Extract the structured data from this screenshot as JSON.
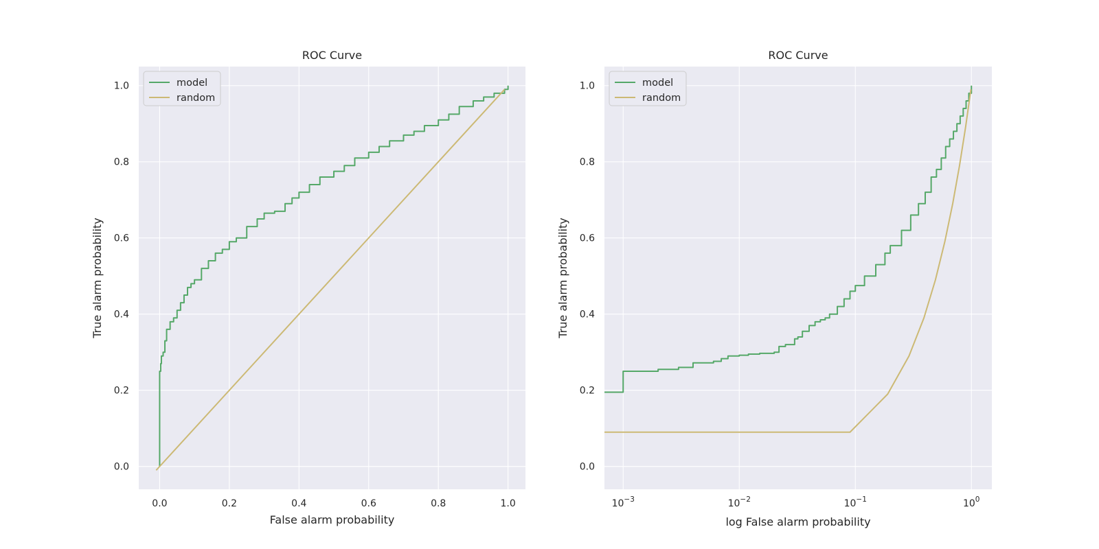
{
  "chart_data": [
    {
      "type": "line",
      "title": "ROC Curve",
      "xlabel": "False alarm probability",
      "ylabel": "True alarm probability",
      "xlim": [
        -0.06,
        1.05
      ],
      "ylim": [
        -0.06,
        1.05
      ],
      "xscale": "linear",
      "xticks": [
        0.0,
        0.2,
        0.4,
        0.6,
        0.8,
        1.0
      ],
      "xtick_labels": [
        "0.0",
        "0.2",
        "0.4",
        "0.6",
        "0.8",
        "1.0"
      ],
      "yticks": [
        0.0,
        0.2,
        0.4,
        0.6,
        0.8,
        1.0
      ],
      "ytick_labels": [
        "0.0",
        "0.2",
        "0.4",
        "0.6",
        "0.8",
        "1.0"
      ],
      "grid": true,
      "legend": "upper-left",
      "series": [
        {
          "name": "model",
          "color": "#55a868",
          "step": true,
          "x": [
            0,
            0,
            0.003,
            0.005,
            0.01,
            0.015,
            0.02,
            0.03,
            0.04,
            0.05,
            0.06,
            0.07,
            0.08,
            0.09,
            0.1,
            0.12,
            0.14,
            0.16,
            0.18,
            0.2,
            0.22,
            0.25,
            0.28,
            0.3,
            0.33,
            0.36,
            0.38,
            0.4,
            0.43,
            0.46,
            0.5,
            0.53,
            0.56,
            0.6,
            0.63,
            0.66,
            0.7,
            0.73,
            0.76,
            0.8,
            0.83,
            0.86,
            0.9,
            0.93,
            0.96,
            0.99,
            1.0
          ],
          "y": [
            0,
            0.25,
            0.27,
            0.29,
            0.3,
            0.33,
            0.36,
            0.38,
            0.39,
            0.41,
            0.43,
            0.45,
            0.47,
            0.48,
            0.49,
            0.52,
            0.54,
            0.56,
            0.57,
            0.59,
            0.6,
            0.63,
            0.65,
            0.665,
            0.67,
            0.69,
            0.705,
            0.72,
            0.74,
            0.76,
            0.775,
            0.79,
            0.81,
            0.825,
            0.84,
            0.855,
            0.87,
            0.88,
            0.895,
            0.91,
            0.925,
            0.945,
            0.96,
            0.97,
            0.98,
            0.99,
            1.0
          ]
        },
        {
          "name": "random",
          "color": "#ccb974",
          "step": false,
          "x": [
            -0.01,
            0.99
          ],
          "y": [
            -0.01,
            0.99
          ]
        }
      ]
    },
    {
      "type": "line",
      "title": "ROC Curve",
      "xlabel": "log False alarm probability",
      "ylabel": "True alarm probability",
      "xlim": [
        0.00069,
        1.5
      ],
      "ylim": [
        -0.06,
        1.05
      ],
      "xscale": "log",
      "xticks": [
        0.001,
        0.01,
        0.1,
        1
      ],
      "xtick_labels": [
        [
          "10",
          "−3"
        ],
        [
          "10",
          "−2"
        ],
        [
          "10",
          "−1"
        ],
        [
          "10",
          "0"
        ]
      ],
      "yticks": [
        0.0,
        0.2,
        0.4,
        0.6,
        0.8,
        1.0
      ],
      "ytick_labels": [
        "0.0",
        "0.2",
        "0.4",
        "0.6",
        "0.8",
        "1.0"
      ],
      "grid": true,
      "legend": "upper-left",
      "series": [
        {
          "name": "model",
          "color": "#55a868",
          "step": true,
          "x": [
            0.00069,
            0.001,
            0.002,
            0.003,
            0.004,
            0.006,
            0.007,
            0.008,
            0.01,
            0.012,
            0.015,
            0.02,
            0.022,
            0.025,
            0.03,
            0.032,
            0.035,
            0.04,
            0.045,
            0.05,
            0.055,
            0.06,
            0.07,
            0.08,
            0.09,
            0.1,
            0.12,
            0.15,
            0.18,
            0.2,
            0.25,
            0.3,
            0.35,
            0.4,
            0.45,
            0.5,
            0.55,
            0.6,
            0.65,
            0.7,
            0.75,
            0.8,
            0.85,
            0.9,
            0.95,
            1.0
          ],
          "y": [
            0.195,
            0.25,
            0.255,
            0.26,
            0.272,
            0.276,
            0.283,
            0.29,
            0.292,
            0.295,
            0.297,
            0.3,
            0.315,
            0.32,
            0.335,
            0.34,
            0.355,
            0.37,
            0.38,
            0.385,
            0.39,
            0.4,
            0.42,
            0.44,
            0.46,
            0.475,
            0.5,
            0.53,
            0.56,
            0.58,
            0.62,
            0.66,
            0.69,
            0.72,
            0.76,
            0.78,
            0.81,
            0.84,
            0.86,
            0.88,
            0.9,
            0.92,
            0.94,
            0.96,
            0.98,
            1.0
          ]
        },
        {
          "name": "random",
          "color": "#ccb974",
          "step": false,
          "x": [
            0.00069,
            0.09,
            0.19,
            0.29,
            0.39,
            0.49,
            0.59,
            0.69,
            0.79,
            0.89,
            0.99
          ],
          "y": [
            0.09,
            0.09,
            0.19,
            0.29,
            0.39,
            0.49,
            0.59,
            0.69,
            0.79,
            0.89,
            0.99
          ]
        }
      ]
    }
  ]
}
